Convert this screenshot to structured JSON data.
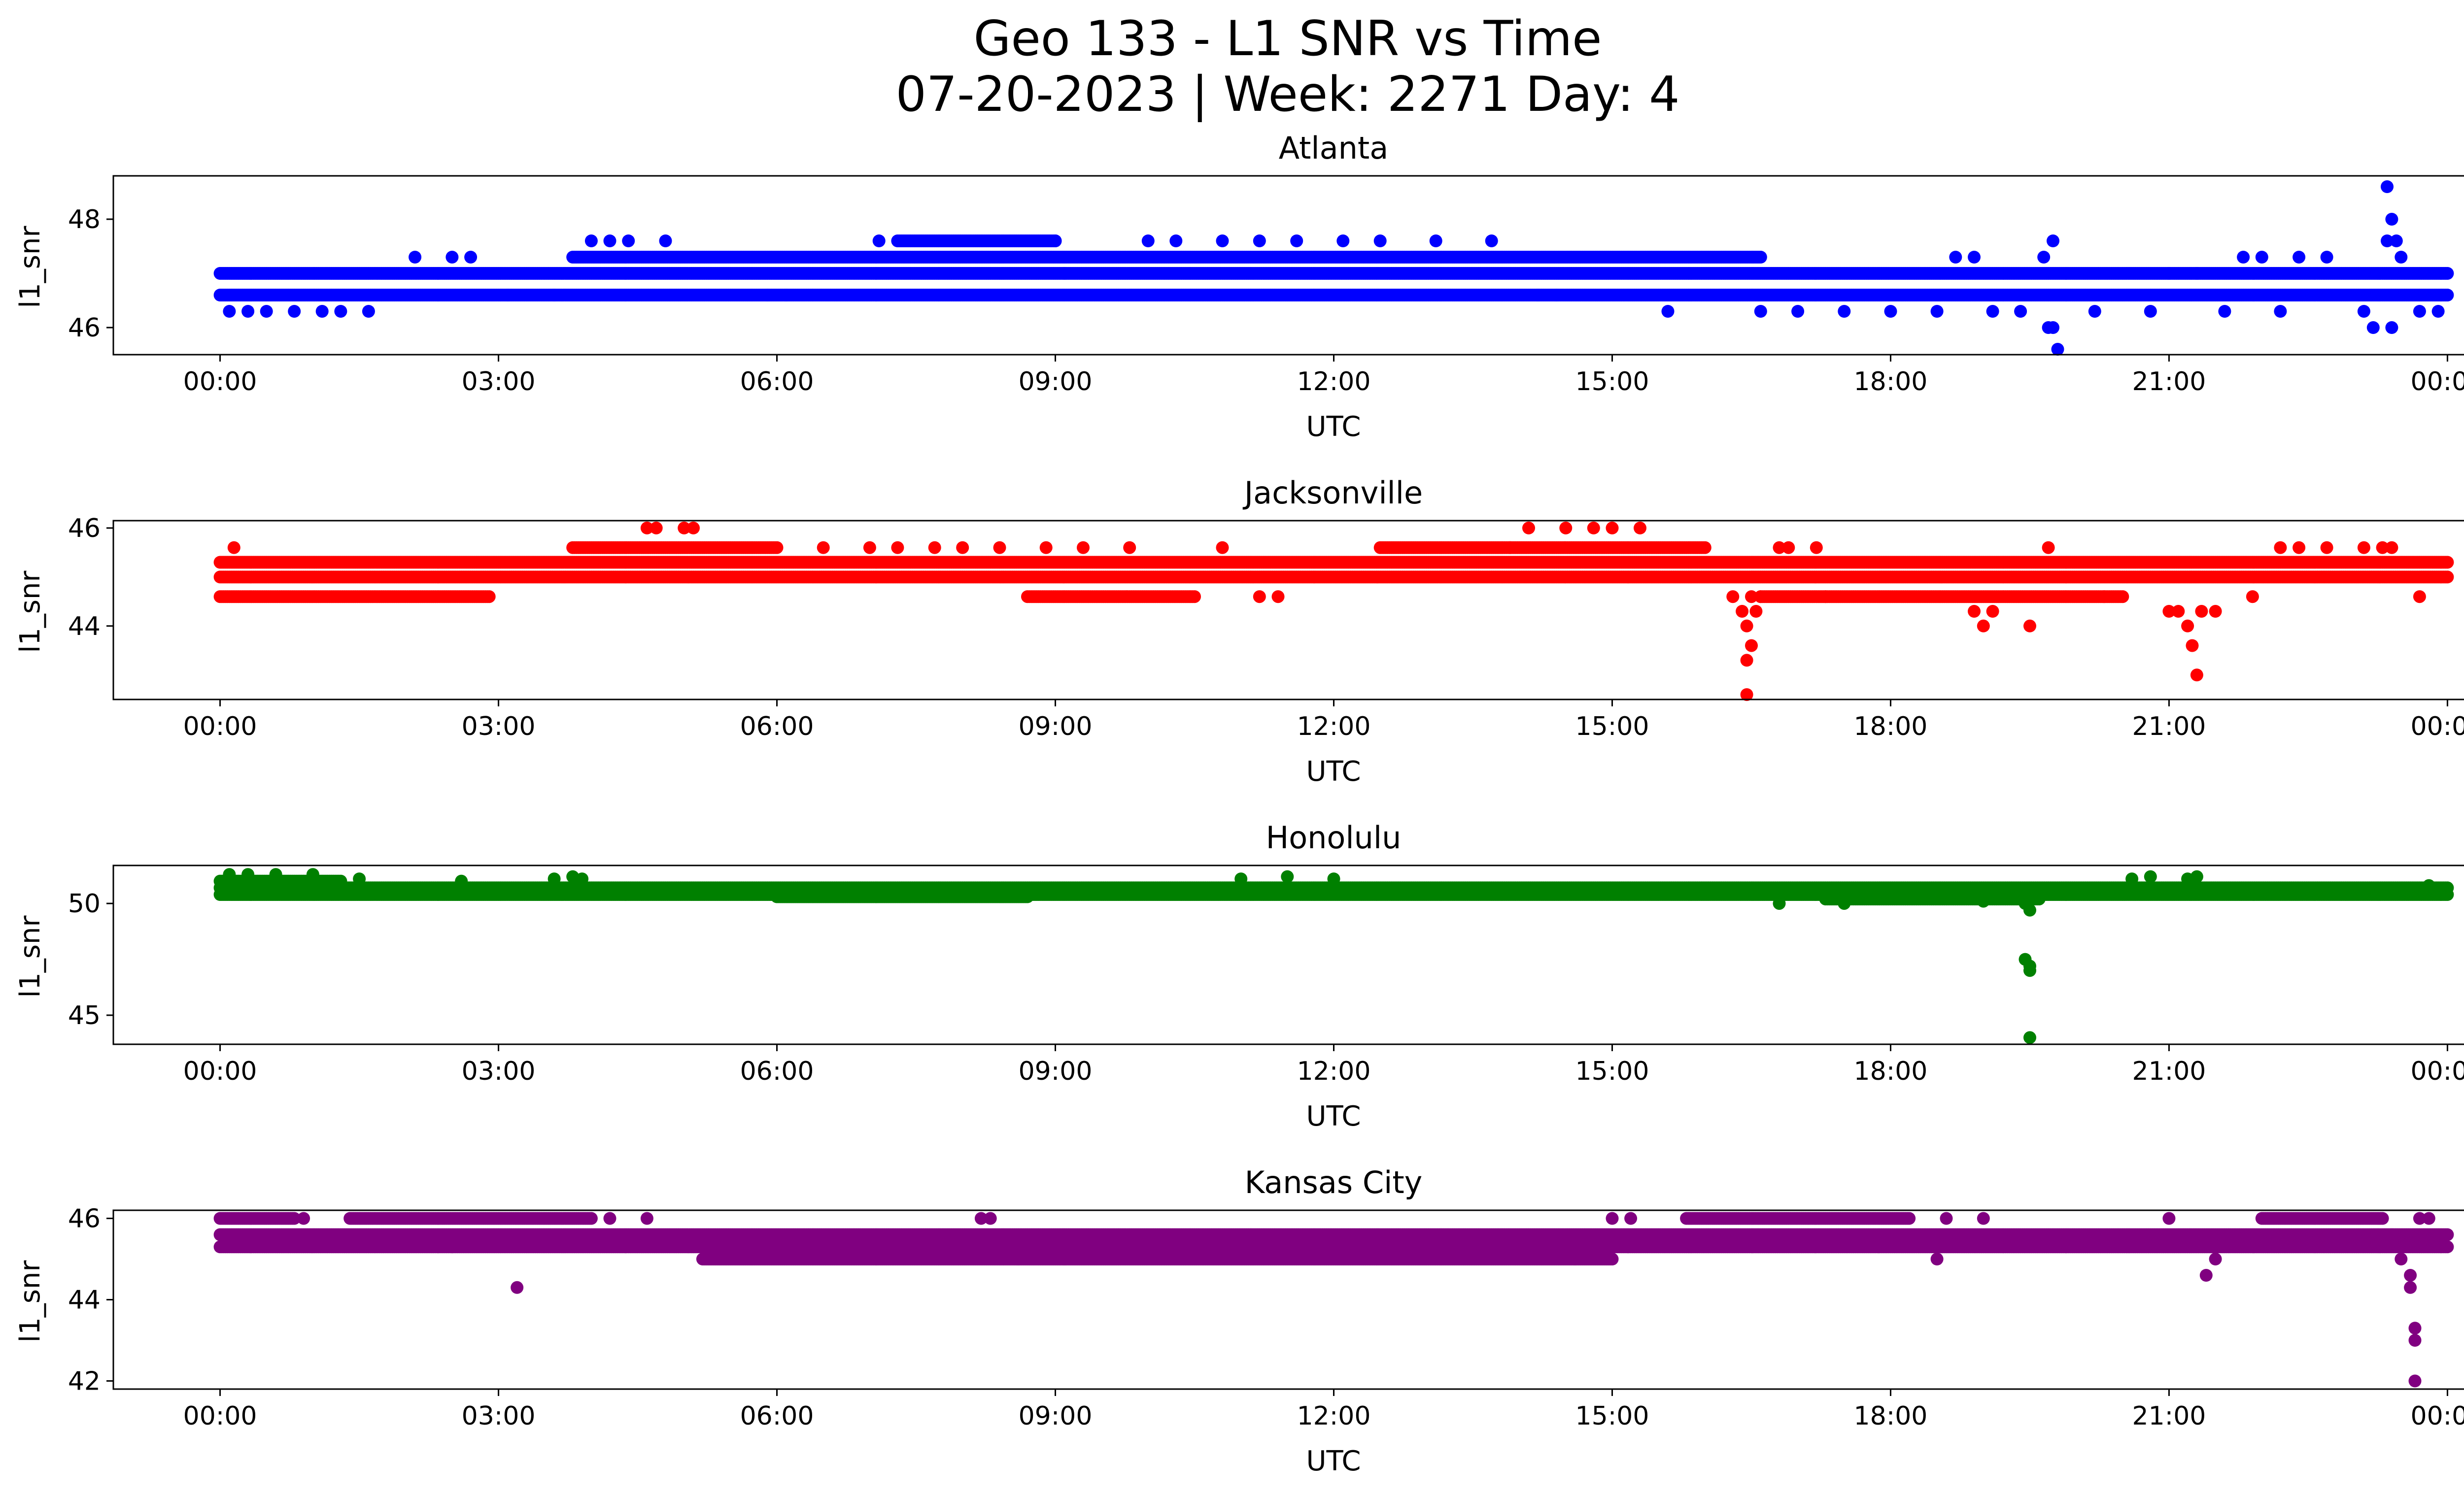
{
  "figure": {
    "title_line1": "Geo 133 - L1 SNR vs Time",
    "title_line2": "07-20-2023 | Week: 2271 Day: 4"
  },
  "chart_data": [
    {
      "type": "scatter",
      "title": "Atlanta",
      "xlabel": "UTC",
      "ylabel": "l1_snr",
      "color": "#0000ff",
      "x_unit": "hours UTC",
      "xlim": [
        -1.15,
        25.15
      ],
      "ylim": [
        45.5,
        48.8
      ],
      "x_tick_labels": [
        "00:00",
        "03:00",
        "06:00",
        "09:00",
        "12:00",
        "15:00",
        "18:00",
        "21:00",
        "00:00"
      ],
      "y_ticks": [
        46,
        48
      ],
      "bands": [
        {
          "x0": 0.0,
          "x1": 24.0,
          "y": 47.0
        },
        {
          "x0": 0.0,
          "x1": 24.0,
          "y": 46.6
        },
        {
          "x0": 3.8,
          "x1": 16.6,
          "y": 47.3
        },
        {
          "x0": 7.3,
          "x1": 9.0,
          "y": 47.6
        }
      ],
      "points": [
        [
          0.1,
          46.3
        ],
        [
          0.3,
          46.3
        ],
        [
          0.5,
          46.3
        ],
        [
          0.8,
          46.3
        ],
        [
          1.1,
          46.3
        ],
        [
          1.3,
          46.3
        ],
        [
          1.6,
          46.3
        ],
        [
          2.1,
          47.3
        ],
        [
          2.5,
          47.3
        ],
        [
          2.7,
          47.3
        ],
        [
          3.1,
          46.6
        ],
        [
          3.6,
          46.6
        ],
        [
          4.0,
          47.6
        ],
        [
          4.2,
          47.6
        ],
        [
          4.4,
          47.6
        ],
        [
          4.8,
          47.6
        ],
        [
          5.9,
          46.6
        ],
        [
          6.1,
          46.6
        ],
        [
          7.1,
          47.6
        ],
        [
          9.0,
          47.6
        ],
        [
          9.1,
          47.0
        ],
        [
          10.0,
          47.6
        ],
        [
          10.3,
          47.6
        ],
        [
          10.8,
          47.6
        ],
        [
          11.2,
          47.6
        ],
        [
          11.6,
          47.6
        ],
        [
          12.1,
          47.6
        ],
        [
          12.5,
          47.6
        ],
        [
          13.1,
          47.6
        ],
        [
          13.7,
          47.6
        ],
        [
          14.2,
          46.6
        ],
        [
          14.4,
          46.6
        ],
        [
          15.6,
          46.3
        ],
        [
          16.6,
          46.3
        ],
        [
          17.0,
          46.3
        ],
        [
          17.5,
          46.3
        ],
        [
          18.0,
          46.3
        ],
        [
          18.5,
          46.3
        ],
        [
          18.7,
          47.3
        ],
        [
          18.9,
          47.3
        ],
        [
          19.1,
          46.3
        ],
        [
          19.4,
          46.3
        ],
        [
          19.7,
          46.0
        ],
        [
          19.75,
          46.0
        ],
        [
          19.8,
          45.6
        ],
        [
          19.65,
          47.3
        ],
        [
          19.75,
          47.6
        ],
        [
          20.2,
          46.3
        ],
        [
          20.8,
          46.3
        ],
        [
          21.0,
          47.0
        ],
        [
          21.3,
          47.0
        ],
        [
          21.6,
          46.3
        ],
        [
          21.8,
          47.3
        ],
        [
          22.0,
          47.3
        ],
        [
          22.2,
          46.3
        ],
        [
          22.4,
          47.3
        ],
        [
          22.7,
          47.3
        ],
        [
          23.1,
          46.3
        ],
        [
          23.2,
          46.0
        ],
        [
          23.4,
          46.0
        ],
        [
          23.35,
          48.6
        ],
        [
          23.4,
          48.0
        ],
        [
          23.45,
          47.6
        ],
        [
          23.35,
          47.6
        ],
        [
          23.5,
          47.3
        ],
        [
          23.7,
          46.3
        ],
        [
          23.9,
          46.3
        ]
      ]
    },
    {
      "type": "scatter",
      "title": "Jacksonville",
      "xlabel": "UTC",
      "ylabel": "l1_snr",
      "color": "#ff0000",
      "x_unit": "hours UTC",
      "xlim": [
        -1.15,
        25.15
      ],
      "ylim": [
        42.5,
        46.15
      ],
      "x_tick_labels": [
        "00:00",
        "03:00",
        "06:00",
        "09:00",
        "12:00",
        "15:00",
        "18:00",
        "21:00",
        "00:00"
      ],
      "y_ticks": [
        44,
        46
      ],
      "bands": [
        {
          "x0": 0.0,
          "x1": 24.0,
          "y": 45.3
        },
        {
          "x0": 0.0,
          "x1": 24.0,
          "y": 45.0
        },
        {
          "x0": 0.0,
          "x1": 2.9,
          "y": 44.6
        },
        {
          "x0": 3.8,
          "x1": 6.0,
          "y": 45.6
        },
        {
          "x0": 12.5,
          "x1": 16.0,
          "y": 45.6
        },
        {
          "x0": 8.7,
          "x1": 10.5,
          "y": 44.6
        },
        {
          "x0": 16.6,
          "x1": 20.5,
          "y": 44.6
        }
      ],
      "points": [
        [
          0.15,
          45.6
        ],
        [
          4.6,
          46.0
        ],
        [
          4.7,
          46.0
        ],
        [
          5.0,
          46.0
        ],
        [
          5.1,
          46.0
        ],
        [
          6.5,
          45.6
        ],
        [
          7.0,
          45.6
        ],
        [
          7.3,
          45.6
        ],
        [
          7.7,
          45.6
        ],
        [
          8.0,
          45.6
        ],
        [
          8.4,
          45.6
        ],
        [
          8.9,
          45.6
        ],
        [
          9.3,
          45.6
        ],
        [
          9.8,
          45.6
        ],
        [
          10.8,
          45.6
        ],
        [
          11.2,
          44.6
        ],
        [
          11.4,
          44.6
        ],
        [
          13.9,
          45.6
        ],
        [
          14.1,
          46.0
        ],
        [
          14.5,
          46.0
        ],
        [
          14.8,
          46.0
        ],
        [
          15.0,
          46.0
        ],
        [
          15.3,
          46.0
        ],
        [
          16.3,
          44.6
        ],
        [
          16.4,
          44.3
        ],
        [
          16.45,
          44.0
        ],
        [
          16.5,
          43.6
        ],
        [
          16.45,
          43.3
        ],
        [
          16.45,
          42.6
        ],
        [
          16.5,
          44.6
        ],
        [
          16.55,
          44.3
        ],
        [
          16.6,
          44.6
        ],
        [
          16.8,
          45.6
        ],
        [
          16.9,
          45.6
        ],
        [
          17.2,
          45.6
        ],
        [
          17.3,
          44.6
        ],
        [
          18.9,
          44.3
        ],
        [
          19.0,
          44.0
        ],
        [
          19.1,
          44.3
        ],
        [
          19.5,
          44.0
        ],
        [
          19.7,
          45.6
        ],
        [
          20.3,
          44.6
        ],
        [
          21.0,
          44.3
        ],
        [
          21.1,
          44.3
        ],
        [
          21.2,
          44.0
        ],
        [
          21.25,
          43.6
        ],
        [
          21.3,
          43.0
        ],
        [
          21.35,
          44.3
        ],
        [
          21.5,
          44.3
        ],
        [
          21.9,
          44.6
        ],
        [
          22.2,
          45.6
        ],
        [
          22.4,
          45.6
        ],
        [
          22.7,
          45.6
        ],
        [
          23.1,
          45.6
        ],
        [
          23.3,
          45.6
        ],
        [
          23.4,
          45.6
        ],
        [
          23.7,
          44.6
        ]
      ]
    },
    {
      "type": "scatter",
      "title": "Honolulu",
      "xlabel": "UTC",
      "ylabel": "l1_snr",
      "color": "#008000",
      "x_unit": "hours UTC",
      "xlim": [
        -1.15,
        25.15
      ],
      "ylim": [
        43.7,
        51.7
      ],
      "x_tick_labels": [
        "00:00",
        "03:00",
        "06:00",
        "09:00",
        "12:00",
        "15:00",
        "18:00",
        "21:00",
        "00:00"
      ],
      "y_ticks": [
        45,
        50
      ],
      "bands": [
        {
          "x0": 0.0,
          "x1": 24.0,
          "y": 50.7
        },
        {
          "x0": 0.0,
          "x1": 24.0,
          "y": 50.4
        },
        {
          "x0": 0.0,
          "x1": 1.3,
          "y": 51.0
        },
        {
          "x0": 6.0,
          "x1": 8.7,
          "y": 50.3
        },
        {
          "x0": 17.3,
          "x1": 19.6,
          "y": 50.2
        }
      ],
      "points": [
        [
          0.1,
          51.3
        ],
        [
          0.3,
          51.3
        ],
        [
          0.6,
          51.3
        ],
        [
          1.0,
          51.3
        ],
        [
          1.5,
          51.1
        ],
        [
          2.6,
          51.0
        ],
        [
          3.6,
          51.1
        ],
        [
          3.8,
          51.2
        ],
        [
          3.9,
          51.1
        ],
        [
          11.0,
          51.1
        ],
        [
          11.5,
          51.2
        ],
        [
          12.0,
          51.1
        ],
        [
          19.0,
          50.1
        ],
        [
          16.8,
          50.0
        ],
        [
          17.5,
          50.0
        ],
        [
          19.45,
          50.0
        ],
        [
          19.5,
          49.7
        ],
        [
          19.45,
          47.5
        ],
        [
          19.5,
          47.2
        ],
        [
          19.5,
          47.0
        ],
        [
          19.5,
          44.0
        ],
        [
          20.6,
          51.1
        ],
        [
          20.8,
          51.2
        ],
        [
          21.2,
          51.1
        ],
        [
          21.3,
          51.2
        ],
        [
          23.7,
          50.5
        ],
        [
          23.8,
          50.8
        ]
      ]
    },
    {
      "type": "scatter",
      "title": "Kansas City",
      "xlabel": "UTC",
      "ylabel": "l1_snr",
      "color": "#800080",
      "x_unit": "hours UTC",
      "xlim": [
        -1.15,
        25.15
      ],
      "ylim": [
        41.8,
        46.2
      ],
      "x_tick_labels": [
        "00:00",
        "03:00",
        "06:00",
        "09:00",
        "12:00",
        "15:00",
        "18:00",
        "21:00",
        "00:00"
      ],
      "y_ticks": [
        42,
        44,
        46
      ],
      "bands": [
        {
          "x0": 0.0,
          "x1": 24.0,
          "y": 45.6
        },
        {
          "x0": 0.0,
          "x1": 24.0,
          "y": 45.3
        },
        {
          "x0": 0.0,
          "x1": 0.8,
          "y": 46.0
        },
        {
          "x0": 1.4,
          "x1": 4.0,
          "y": 46.0
        },
        {
          "x0": 5.2,
          "x1": 15.0,
          "y": 45.0
        },
        {
          "x0": 15.8,
          "x1": 18.2,
          "y": 46.0
        },
        {
          "x0": 22.0,
          "x1": 23.3,
          "y": 46.0
        }
      ],
      "points": [
        [
          0.9,
          46.0
        ],
        [
          2.5,
          45.3
        ],
        [
          3.2,
          44.3
        ],
        [
          4.2,
          46.0
        ],
        [
          4.6,
          46.0
        ],
        [
          8.2,
          46.0
        ],
        [
          8.3,
          46.0
        ],
        [
          8.6,
          45.0
        ],
        [
          9.1,
          45.0
        ],
        [
          15.0,
          46.0
        ],
        [
          15.2,
          46.0
        ],
        [
          14.6,
          45.0
        ],
        [
          18.6,
          46.0
        ],
        [
          19.0,
          46.0
        ],
        [
          18.5,
          45.0
        ],
        [
          21.0,
          46.0
        ],
        [
          21.4,
          44.6
        ],
        [
          21.5,
          45.0
        ],
        [
          23.4,
          45.6
        ],
        [
          23.5,
          45.0
        ],
        [
          23.6,
          44.6
        ],
        [
          23.6,
          44.3
        ],
        [
          23.65,
          43.3
        ],
        [
          23.65,
          43.0
        ],
        [
          23.65,
          42.0
        ],
        [
          23.8,
          46.0
        ],
        [
          23.7,
          46.0
        ]
      ]
    }
  ]
}
